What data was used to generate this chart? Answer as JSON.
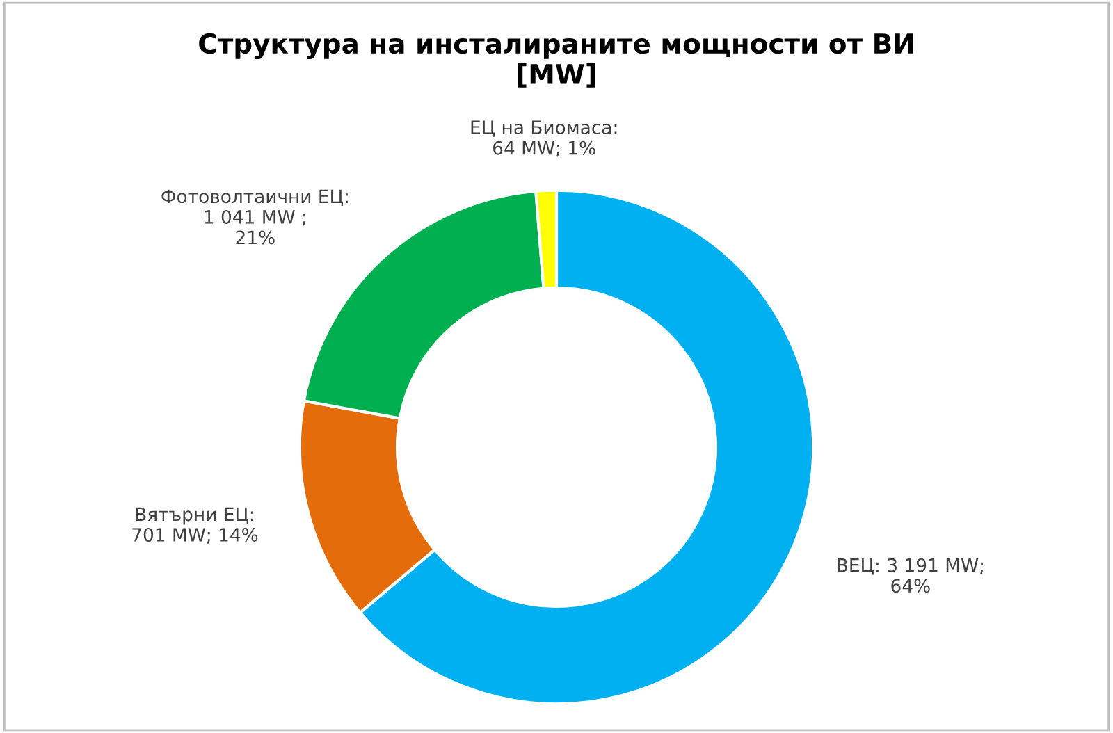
{
  "chart_data": {
    "type": "donut",
    "title": "Структура на инсталираните мощности от ВИ\n[MW]",
    "categories": [
      "ВЕЦ",
      "Вятърни ЕЦ",
      "Фотоволтаични ЕЦ",
      "ЕЦ на Биомаса"
    ],
    "values": [
      3191,
      701,
      1041,
      64
    ],
    "colors": [
      "#00b0f0",
      "#e46c0a",
      "#00b050",
      "#ffff00"
    ],
    "value_labels": [
      ": 3 191 MW;\n64%",
      ":\n701 MW; 14%",
      ":\n1 041 MW ;\n21%",
      ":\n64 MW; 1%"
    ],
    "legend": false
  }
}
